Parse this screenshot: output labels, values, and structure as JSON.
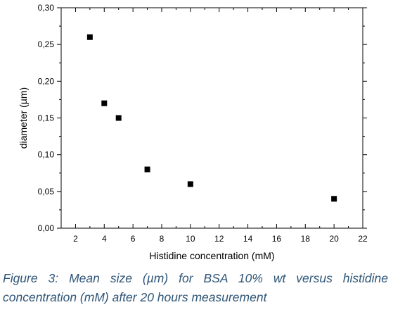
{
  "chart_data": {
    "type": "scatter",
    "title": "",
    "xlabel": "Histidine concentration (mM)",
    "ylabel": "diameter (µm)",
    "xlim": [
      1,
      22
    ],
    "ylim": [
      0,
      0.3
    ],
    "xticks": [
      2,
      4,
      6,
      8,
      10,
      12,
      14,
      16,
      18,
      20,
      22
    ],
    "xtick_labels": [
      "2",
      "4",
      "6",
      "8",
      "10",
      "12",
      "14",
      "16",
      "18",
      "20",
      "22"
    ],
    "yticks": [
      0,
      0.05,
      0.1,
      0.15,
      0.2,
      0.25,
      0.3
    ],
    "ytick_labels": [
      "0,00",
      "0,05",
      "0,10",
      "0,15",
      "0,20",
      "0,25",
      "0,30"
    ],
    "grid": false,
    "marker": "square",
    "marker_color": "#000000",
    "points": [
      {
        "x": 3,
        "y": 0.26
      },
      {
        "x": 4,
        "y": 0.17
      },
      {
        "x": 5,
        "y": 0.15
      },
      {
        "x": 7,
        "y": 0.08
      },
      {
        "x": 10,
        "y": 0.06
      },
      {
        "x": 20,
        "y": 0.04
      }
    ]
  },
  "caption": "Figure 3: Mean size (µm) for BSA 10% wt versus histidine concentration (mM) after 20 hours measurement",
  "caption_color": "#2e5577"
}
